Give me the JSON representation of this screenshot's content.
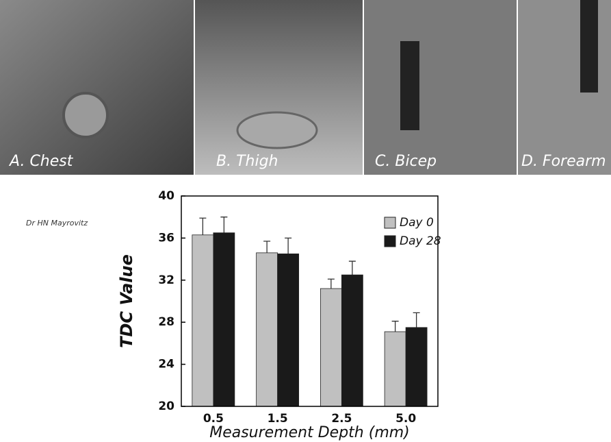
{
  "photos": {
    "labels": [
      "A. Chest",
      "B. Thigh",
      "C. Bicep",
      "D. Forearm"
    ]
  },
  "watermark": "Dr HN Mayrovitz",
  "chart_data": {
    "type": "bar",
    "x_label": "Measurement Depth (mm)",
    "y_label": "TDC Value",
    "categories": [
      "0.5",
      "1.5",
      "2.5",
      "5.0"
    ],
    "series": [
      {
        "name": "Day 0",
        "color": "#c0c0c0",
        "values": [
          36.3,
          34.6,
          31.2,
          27.1
        ],
        "errors": [
          1.6,
          1.1,
          0.9,
          1.0
        ]
      },
      {
        "name": "Day 28",
        "color": "#1a1a1a",
        "values": [
          36.5,
          34.5,
          32.5,
          27.5
        ],
        "errors": [
          1.5,
          1.5,
          1.3,
          1.4
        ]
      }
    ],
    "ylim": [
      20,
      40
    ],
    "yticks": [
      20,
      24,
      28,
      32,
      36,
      40
    ],
    "grid": false,
    "legend": "upper right"
  }
}
